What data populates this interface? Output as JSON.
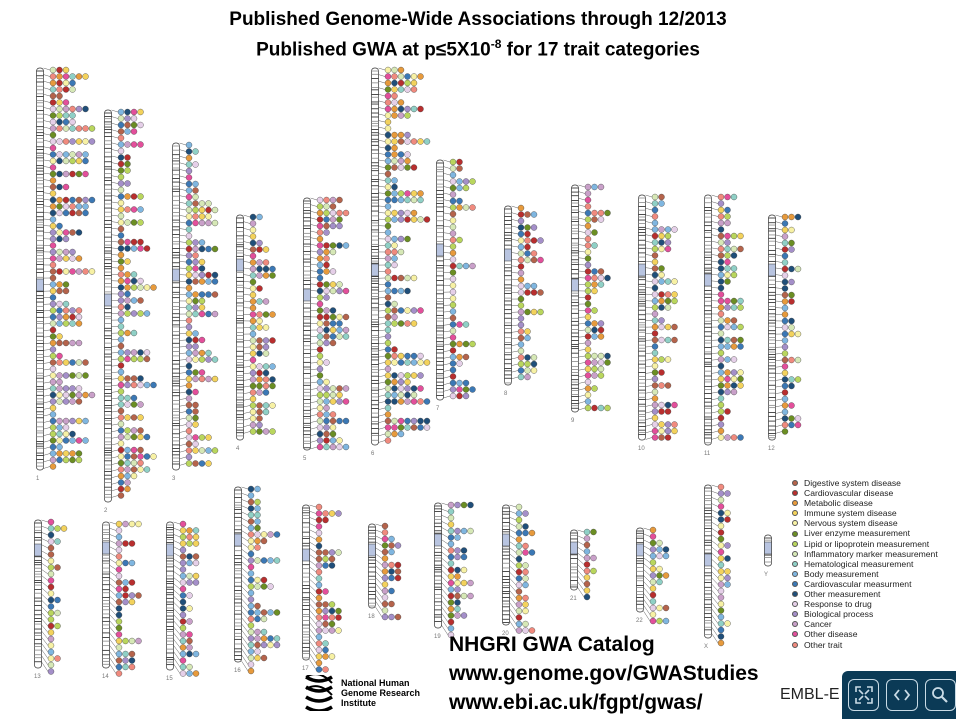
{
  "title_line1": "Published Genome-Wide Associations through 12/2013",
  "title_line2_prefix": "Published GWA at p≤5X10",
  "title_line2_exponent": "-8",
  "title_line2_suffix": " for 17 trait categories",
  "chromosomes": {
    "labels": [
      "1",
      "2",
      "3",
      "4",
      "5",
      "6",
      "7",
      "8",
      "9",
      "10",
      "11",
      "12",
      "13",
      "14",
      "15",
      "16",
      "17",
      "18",
      "19",
      "20",
      "21",
      "22",
      "X",
      "Y"
    ]
  },
  "legend": [
    {
      "label": "Digestive system disease",
      "color": "#b5634b"
    },
    {
      "label": "Cardiovascular disease",
      "color": "#b82e2e"
    },
    {
      "label": "Metabolic disease",
      "color": "#e79a3c"
    },
    {
      "label": "Immune system disease",
      "color": "#f3d25c"
    },
    {
      "label": "Nervous system disease",
      "color": "#f7f1a4"
    },
    {
      "label": "Liver enzyme measurement",
      "color": "#6b8e23"
    },
    {
      "label": "Lipid or lipoprotein measurement",
      "color": "#b9d65d"
    },
    {
      "label": "Inflammatory marker measurement",
      "color": "#d6e8b6"
    },
    {
      "label": "Hematological measurement",
      "color": "#8fd0c6"
    },
    {
      "label": "Body measurement",
      "color": "#7fb6e0"
    },
    {
      "label": "Cardiovascular measurment",
      "color": "#3b78b5"
    },
    {
      "label": "Other measurement",
      "color": "#1f4e79"
    },
    {
      "label": "Response to drug",
      "color": "#e5cfe8"
    },
    {
      "label": "Biological process",
      "color": "#a48fc9"
    },
    {
      "label": "Cancer",
      "color": "#c9a0c9"
    },
    {
      "label": "Other disease",
      "color": "#e34f9b"
    },
    {
      "label": "Other trait",
      "color": "#f08a7e"
    }
  ],
  "catalog": {
    "line1": "NHGRI GWA Catalog",
    "line2": "www.genome.gov/GWAStudies",
    "line3": "www.ebi.ac.uk/fgpt/gwas/"
  },
  "institute": {
    "line1": "National Human",
    "line2": "Genome Research",
    "line3": "Institute"
  },
  "embl_text": "EMBL-E",
  "viewer_controls": [
    {
      "name": "fit-screen-icon",
      "glyph": "⛶"
    },
    {
      "name": "prev-next-icon",
      "glyph": "‹ ›"
    },
    {
      "name": "zoom-icon",
      "glyph": "🔍"
    }
  ]
}
